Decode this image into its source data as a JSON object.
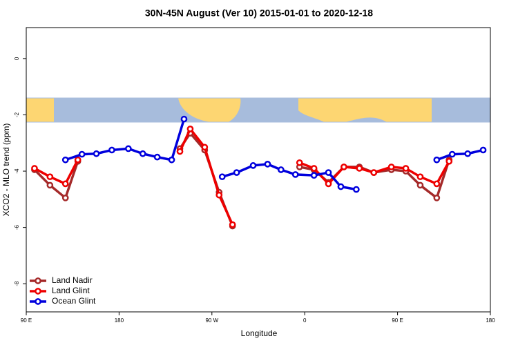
{
  "chart_data": {
    "type": "line",
    "title": "30N-45N August (Ver 10)   2015-01-01 to 2020-12-18",
    "x_label": "Longitude",
    "y_label": "XCO2 - MLO trend (ppm)",
    "xlim": [
      90,
      540
    ],
    "xticks": [
      {
        "value": 90,
        "label": "90 E"
      },
      {
        "value": 180,
        "label": "180"
      },
      {
        "value": 270,
        "label": "90 W"
      },
      {
        "value": 360,
        "label": "0"
      },
      {
        "value": 450,
        "label": "90 E"
      },
      {
        "value": 540,
        "label": "180"
      }
    ],
    "ylim": [
      -9,
      1.1
    ],
    "yticks": [
      0,
      -2,
      -4,
      -6,
      -8
    ],
    "legend": "lower left",
    "series": [
      {
        "name": "Land Nadir",
        "color": "#a52a2a",
        "x": [
          98,
          113,
          128,
          140,
          null,
          239,
          249,
          263,
          277,
          290,
          null,
          355,
          369,
          383,
          398,
          413,
          427,
          444,
          458,
          472,
          488,
          500
        ],
        "values": [
          -3.95,
          -4.5,
          -4.95,
          -3.65,
          null,
          -3.2,
          -2.65,
          -3.25,
          -4.75,
          -5.95,
          null,
          -3.85,
          -3.95,
          -4.4,
          -3.85,
          -3.85,
          -4.05,
          -3.95,
          -4.0,
          -4.5,
          -4.95,
          -3.6
        ]
      },
      {
        "name": "Land Glint",
        "color": "#ee0000",
        "x": [
          98,
          113,
          128,
          140,
          null,
          239,
          249,
          263,
          277,
          290,
          null,
          355,
          369,
          383,
          398,
          413,
          427,
          444,
          458,
          472,
          488,
          500
        ],
        "values": [
          -3.9,
          -4.2,
          -4.45,
          -3.6,
          null,
          -3.3,
          -2.5,
          -3.15,
          -4.85,
          -5.9,
          null,
          -3.7,
          -3.9,
          -4.45,
          -3.85,
          -3.9,
          -4.05,
          -3.85,
          -3.9,
          -4.2,
          -4.45,
          -3.65
        ]
      },
      {
        "name": "Ocean Glint",
        "color": "#0000dd",
        "x": [
          128,
          144,
          158,
          173,
          189,
          203,
          217,
          231,
          243,
          null,
          280,
          294,
          310,
          324,
          337,
          351,
          369,
          383,
          395,
          410,
          null,
          488,
          503,
          518,
          533
        ],
        "values": [
          -3.6,
          -3.4,
          -3.38,
          -3.25,
          -3.2,
          -3.38,
          -3.5,
          -3.6,
          -2.15,
          null,
          -4.2,
          -4.05,
          -3.8,
          -3.75,
          -3.95,
          -4.12,
          -4.15,
          -4.05,
          -4.55,
          -4.65,
          null,
          -3.6,
          -3.4,
          -3.38,
          -3.25
        ]
      }
    ]
  }
}
